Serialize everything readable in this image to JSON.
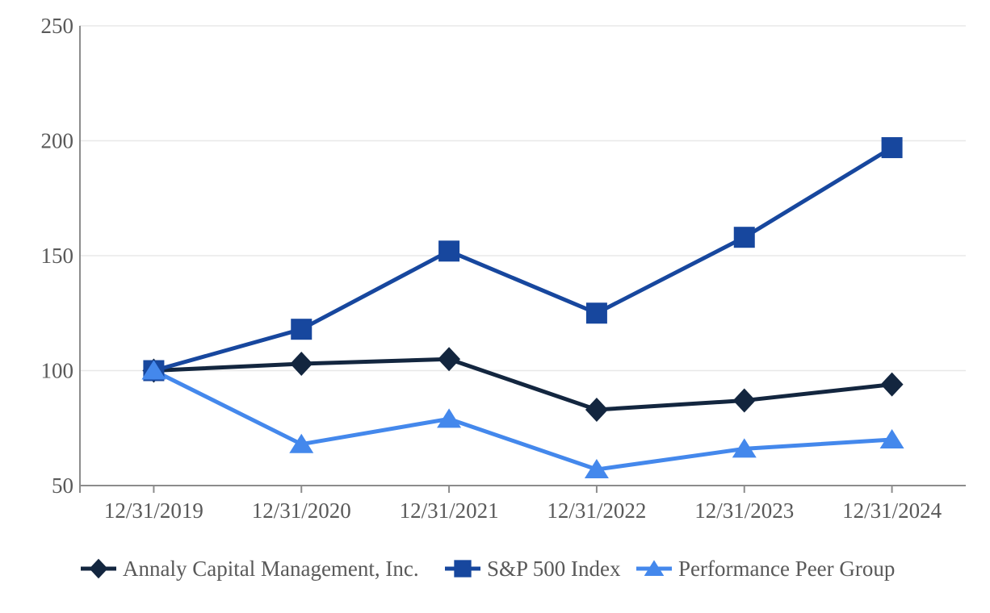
{
  "chart_data": {
    "type": "line",
    "title": "",
    "xlabel": "",
    "ylabel": "",
    "x": [
      "12/31/2019",
      "12/31/2020",
      "12/31/2021",
      "12/31/2022",
      "12/31/2023",
      "12/31/2024"
    ],
    "series": [
      {
        "name": "Annaly Capital Management, Inc.",
        "marker": "diamond",
        "color": "#13263F",
        "values": [
          100,
          103,
          105,
          83,
          87,
          94
        ]
      },
      {
        "name": "S&P 500 Index",
        "marker": "square",
        "color": "#17479E",
        "values": [
          100,
          118,
          152,
          125,
          158,
          197
        ]
      },
      {
        "name": "Performance Peer Group",
        "marker": "triangle",
        "color": "#4488EC",
        "values": [
          100,
          68,
          79,
          57,
          66,
          70
        ]
      }
    ],
    "ylim": [
      50,
      250
    ],
    "yticks": [
      50,
      100,
      150,
      200,
      250
    ],
    "grid": true,
    "legend_position": "bottom"
  },
  "style_colors": {
    "gridline": "#E8E8E8",
    "axis_line": "#8C8C8C",
    "tick_text": "#595959",
    "background": "#FFFFFF"
  }
}
